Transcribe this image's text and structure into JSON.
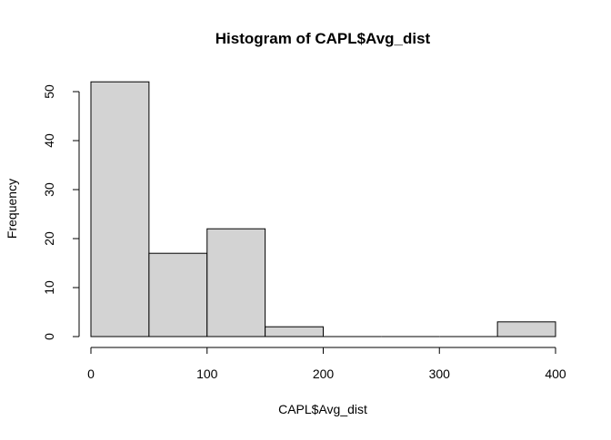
{
  "chart_data": {
    "type": "histogram",
    "title": "Histogram of CAPL$Avg_dist",
    "xlabel": "CAPL$Avg_dist",
    "ylabel": "Frequency",
    "bins": [
      {
        "x0": 0,
        "x1": 50,
        "count": 52
      },
      {
        "x0": 50,
        "x1": 100,
        "count": 17
      },
      {
        "x0": 100,
        "x1": 150,
        "count": 22
      },
      {
        "x0": 150,
        "x1": 200,
        "count": 2
      },
      {
        "x0": 200,
        "x1": 250,
        "count": 0
      },
      {
        "x0": 250,
        "x1": 300,
        "count": 0
      },
      {
        "x0": 300,
        "x1": 350,
        "count": 0
      },
      {
        "x0": 350,
        "x1": 400,
        "count": 3
      }
    ],
    "x_ticks": [
      0,
      100,
      200,
      300,
      400
    ],
    "y_ticks": [
      0,
      10,
      20,
      30,
      40,
      50
    ],
    "xlim": [
      0,
      400
    ],
    "ylim": [
      0,
      52
    ],
    "grid": false,
    "legend": "none",
    "bar_fill": "#d3d3d3",
    "bar_stroke": "#000000"
  }
}
